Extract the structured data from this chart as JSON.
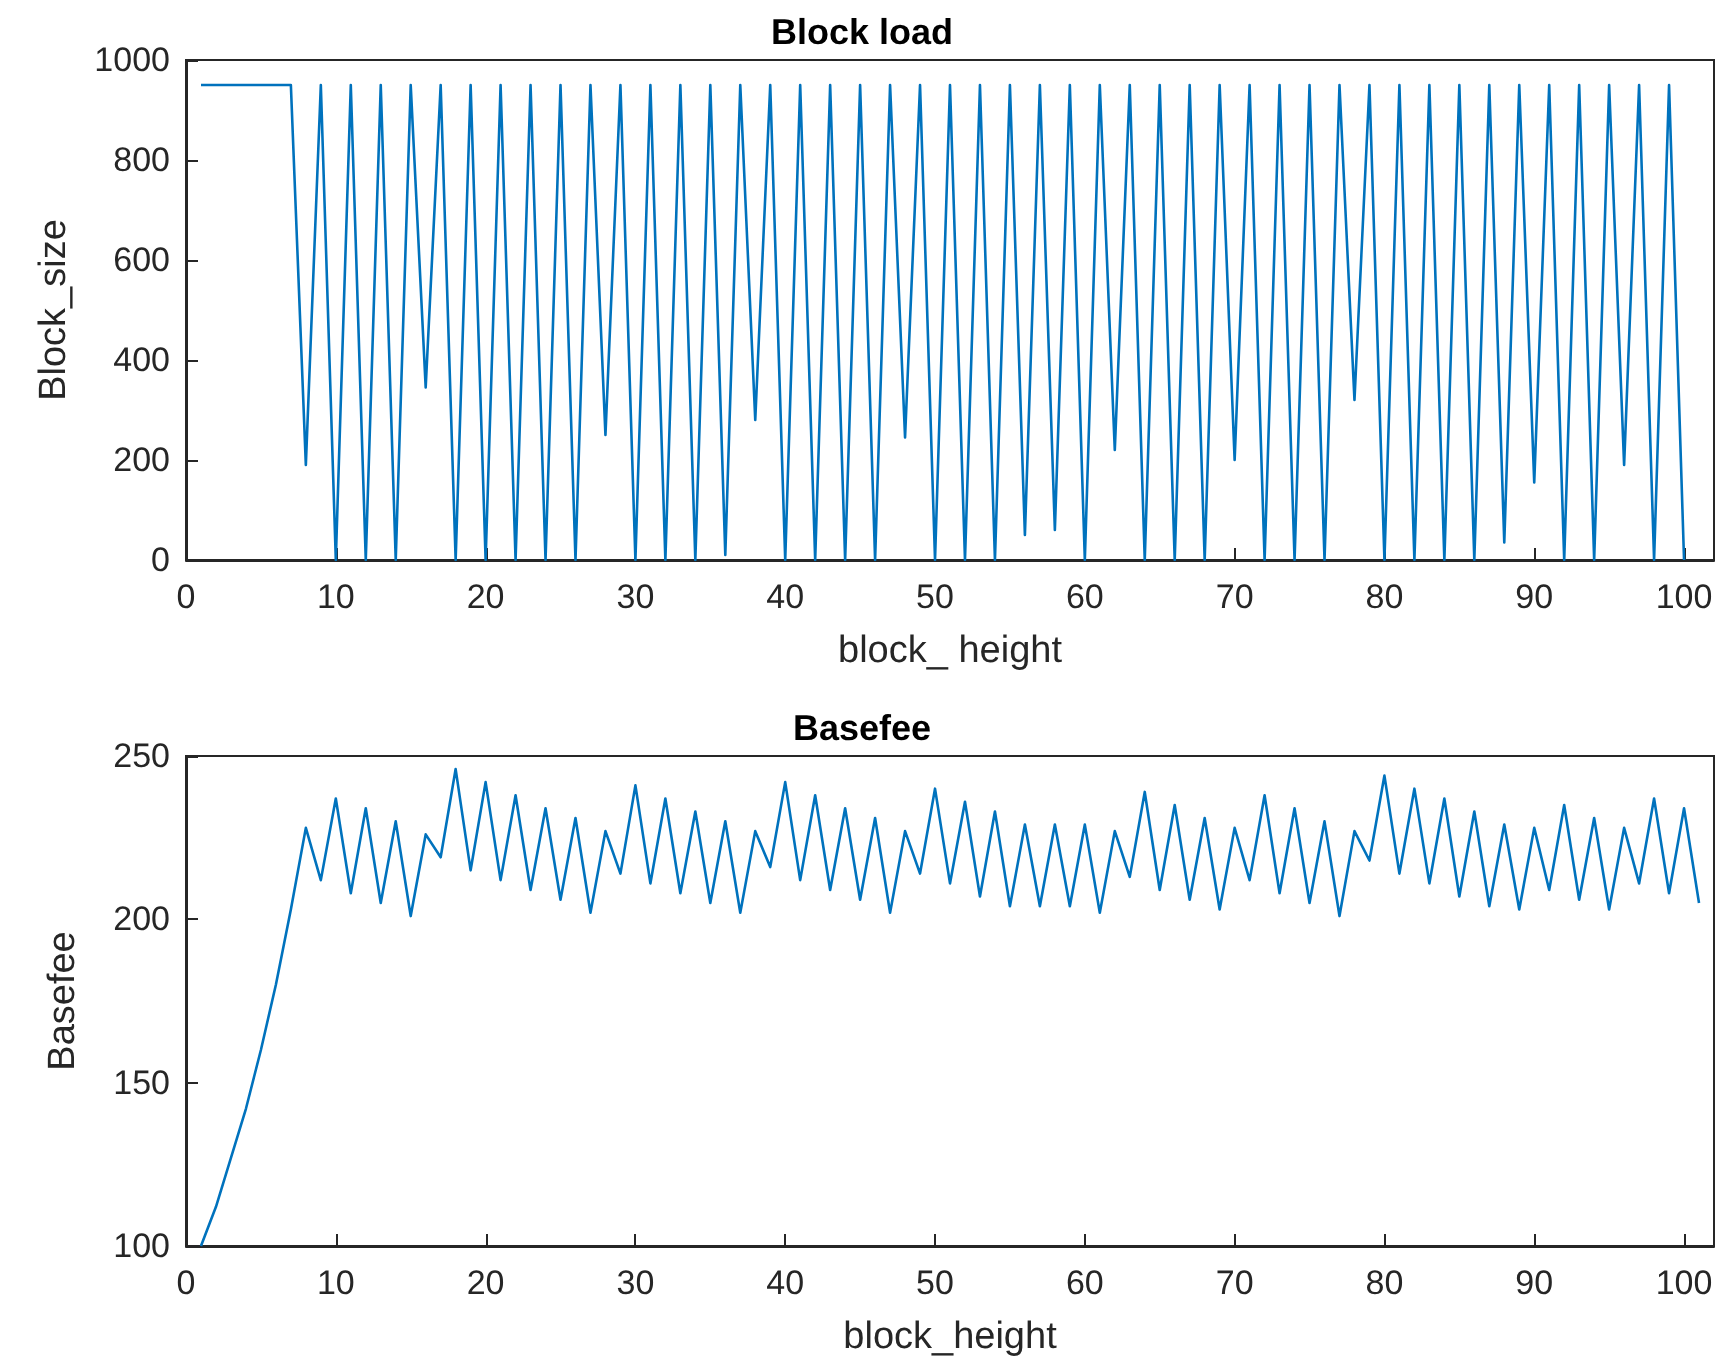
{
  "chart_data": [
    {
      "type": "line",
      "title": "Block load",
      "xlabel": "block_ height",
      "ylabel": "Block_size",
      "x": [
        1,
        2,
        3,
        4,
        5,
        6,
        7,
        8,
        9,
        10,
        11,
        12,
        13,
        14,
        15,
        16,
        17,
        18,
        19,
        20,
        21,
        22,
        23,
        24,
        25,
        26,
        27,
        28,
        29,
        30,
        31,
        32,
        33,
        34,
        35,
        36,
        37,
        38,
        39,
        40,
        41,
        42,
        43,
        44,
        45,
        46,
        47,
        48,
        49,
        50,
        51,
        52,
        53,
        54,
        55,
        56,
        57,
        58,
        59,
        60,
        61,
        62,
        63,
        64,
        65,
        66,
        67,
        68,
        69,
        70,
        71,
        72,
        73,
        74,
        75,
        76,
        77,
        78,
        79,
        80,
        81,
        82,
        83,
        84,
        85,
        86,
        87,
        88,
        89,
        90,
        91,
        92,
        93,
        94,
        95,
        96,
        97,
        98,
        99,
        100
      ],
      "series": [
        {
          "color": "#0072bd",
          "values": [
            950,
            950,
            950,
            950,
            950,
            950,
            950,
            190,
            950,
            0,
            950,
            0,
            950,
            0,
            950,
            345,
            950,
            0,
            950,
            0,
            950,
            0,
            950,
            0,
            950,
            0,
            950,
            250,
            950,
            0,
            950,
            0,
            950,
            0,
            950,
            10,
            950,
            280,
            950,
            0,
            950,
            0,
            950,
            0,
            950,
            0,
            950,
            245,
            950,
            0,
            950,
            0,
            950,
            0,
            950,
            50,
            950,
            60,
            950,
            0,
            950,
            220,
            950,
            0,
            950,
            0,
            950,
            0,
            950,
            200,
            950,
            0,
            950,
            0,
            950,
            0,
            950,
            320,
            950,
            0,
            950,
            0,
            950,
            0,
            950,
            0,
            950,
            35,
            950,
            155,
            950,
            0,
            950,
            0,
            950,
            190,
            950,
            0,
            950,
            0
          ]
        }
      ],
      "xlim": [
        0,
        102
      ],
      "xticks": [
        0,
        10,
        20,
        30,
        40,
        50,
        60,
        70,
        80,
        90,
        100
      ],
      "ylim": [
        0,
        1000
      ],
      "yticks": [
        0,
        200,
        400,
        600,
        800,
        1000
      ],
      "marker": "none",
      "line_style": "solid",
      "grid": false
    },
    {
      "type": "line",
      "title": "Basefee",
      "xlabel": "block_height",
      "ylabel": "Basefee",
      "x": [
        1,
        2,
        3,
        4,
        5,
        6,
        7,
        8,
        9,
        10,
        11,
        12,
        13,
        14,
        15,
        16,
        17,
        18,
        19,
        20,
        21,
        22,
        23,
        24,
        25,
        26,
        27,
        28,
        29,
        30,
        31,
        32,
        33,
        34,
        35,
        36,
        37,
        38,
        39,
        40,
        41,
        42,
        43,
        44,
        45,
        46,
        47,
        48,
        49,
        50,
        51,
        52,
        53,
        54,
        55,
        56,
        57,
        58,
        59,
        60,
        61,
        62,
        63,
        64,
        65,
        66,
        67,
        68,
        69,
        70,
        71,
        72,
        73,
        74,
        75,
        76,
        77,
        78,
        79,
        80,
        81,
        82,
        83,
        84,
        85,
        86,
        87,
        88,
        89,
        90,
        91,
        92,
        93,
        94,
        95,
        96,
        97,
        98,
        99,
        100,
        101
      ],
      "series": [
        {
          "color": "#0072bd",
          "values": [
            100,
            112,
            127,
            142,
            160,
            180,
            203,
            228,
            212,
            237,
            208,
            234,
            205,
            230,
            201,
            226,
            219,
            246,
            215,
            242,
            212,
            238,
            209,
            234,
            206,
            231,
            202,
            227,
            214,
            241,
            211,
            237,
            208,
            233,
            205,
            230,
            202,
            227,
            216,
            242,
            212,
            238,
            209,
            234,
            206,
            231,
            202,
            227,
            214,
            240,
            211,
            236,
            207,
            233,
            204,
            229,
            204,
            229,
            204,
            229,
            202,
            227,
            213,
            239,
            209,
            235,
            206,
            231,
            203,
            228,
            212,
            238,
            208,
            234,
            205,
            230,
            201,
            227,
            218,
            244,
            214,
            240,
            211,
            237,
            207,
            233,
            204,
            229,
            203,
            228,
            209,
            235,
            206,
            231,
            203,
            228,
            211,
            237,
            208,
            234,
            205
          ]
        }
      ],
      "xlim": [
        0,
        102
      ],
      "xticks": [
        0,
        10,
        20,
        30,
        40,
        50,
        60,
        70,
        80,
        90,
        100
      ],
      "ylim": [
        100,
        250
      ],
      "yticks": [
        100,
        150,
        200,
        250
      ],
      "marker": "none",
      "line_style": "solid",
      "grid": false
    }
  ]
}
